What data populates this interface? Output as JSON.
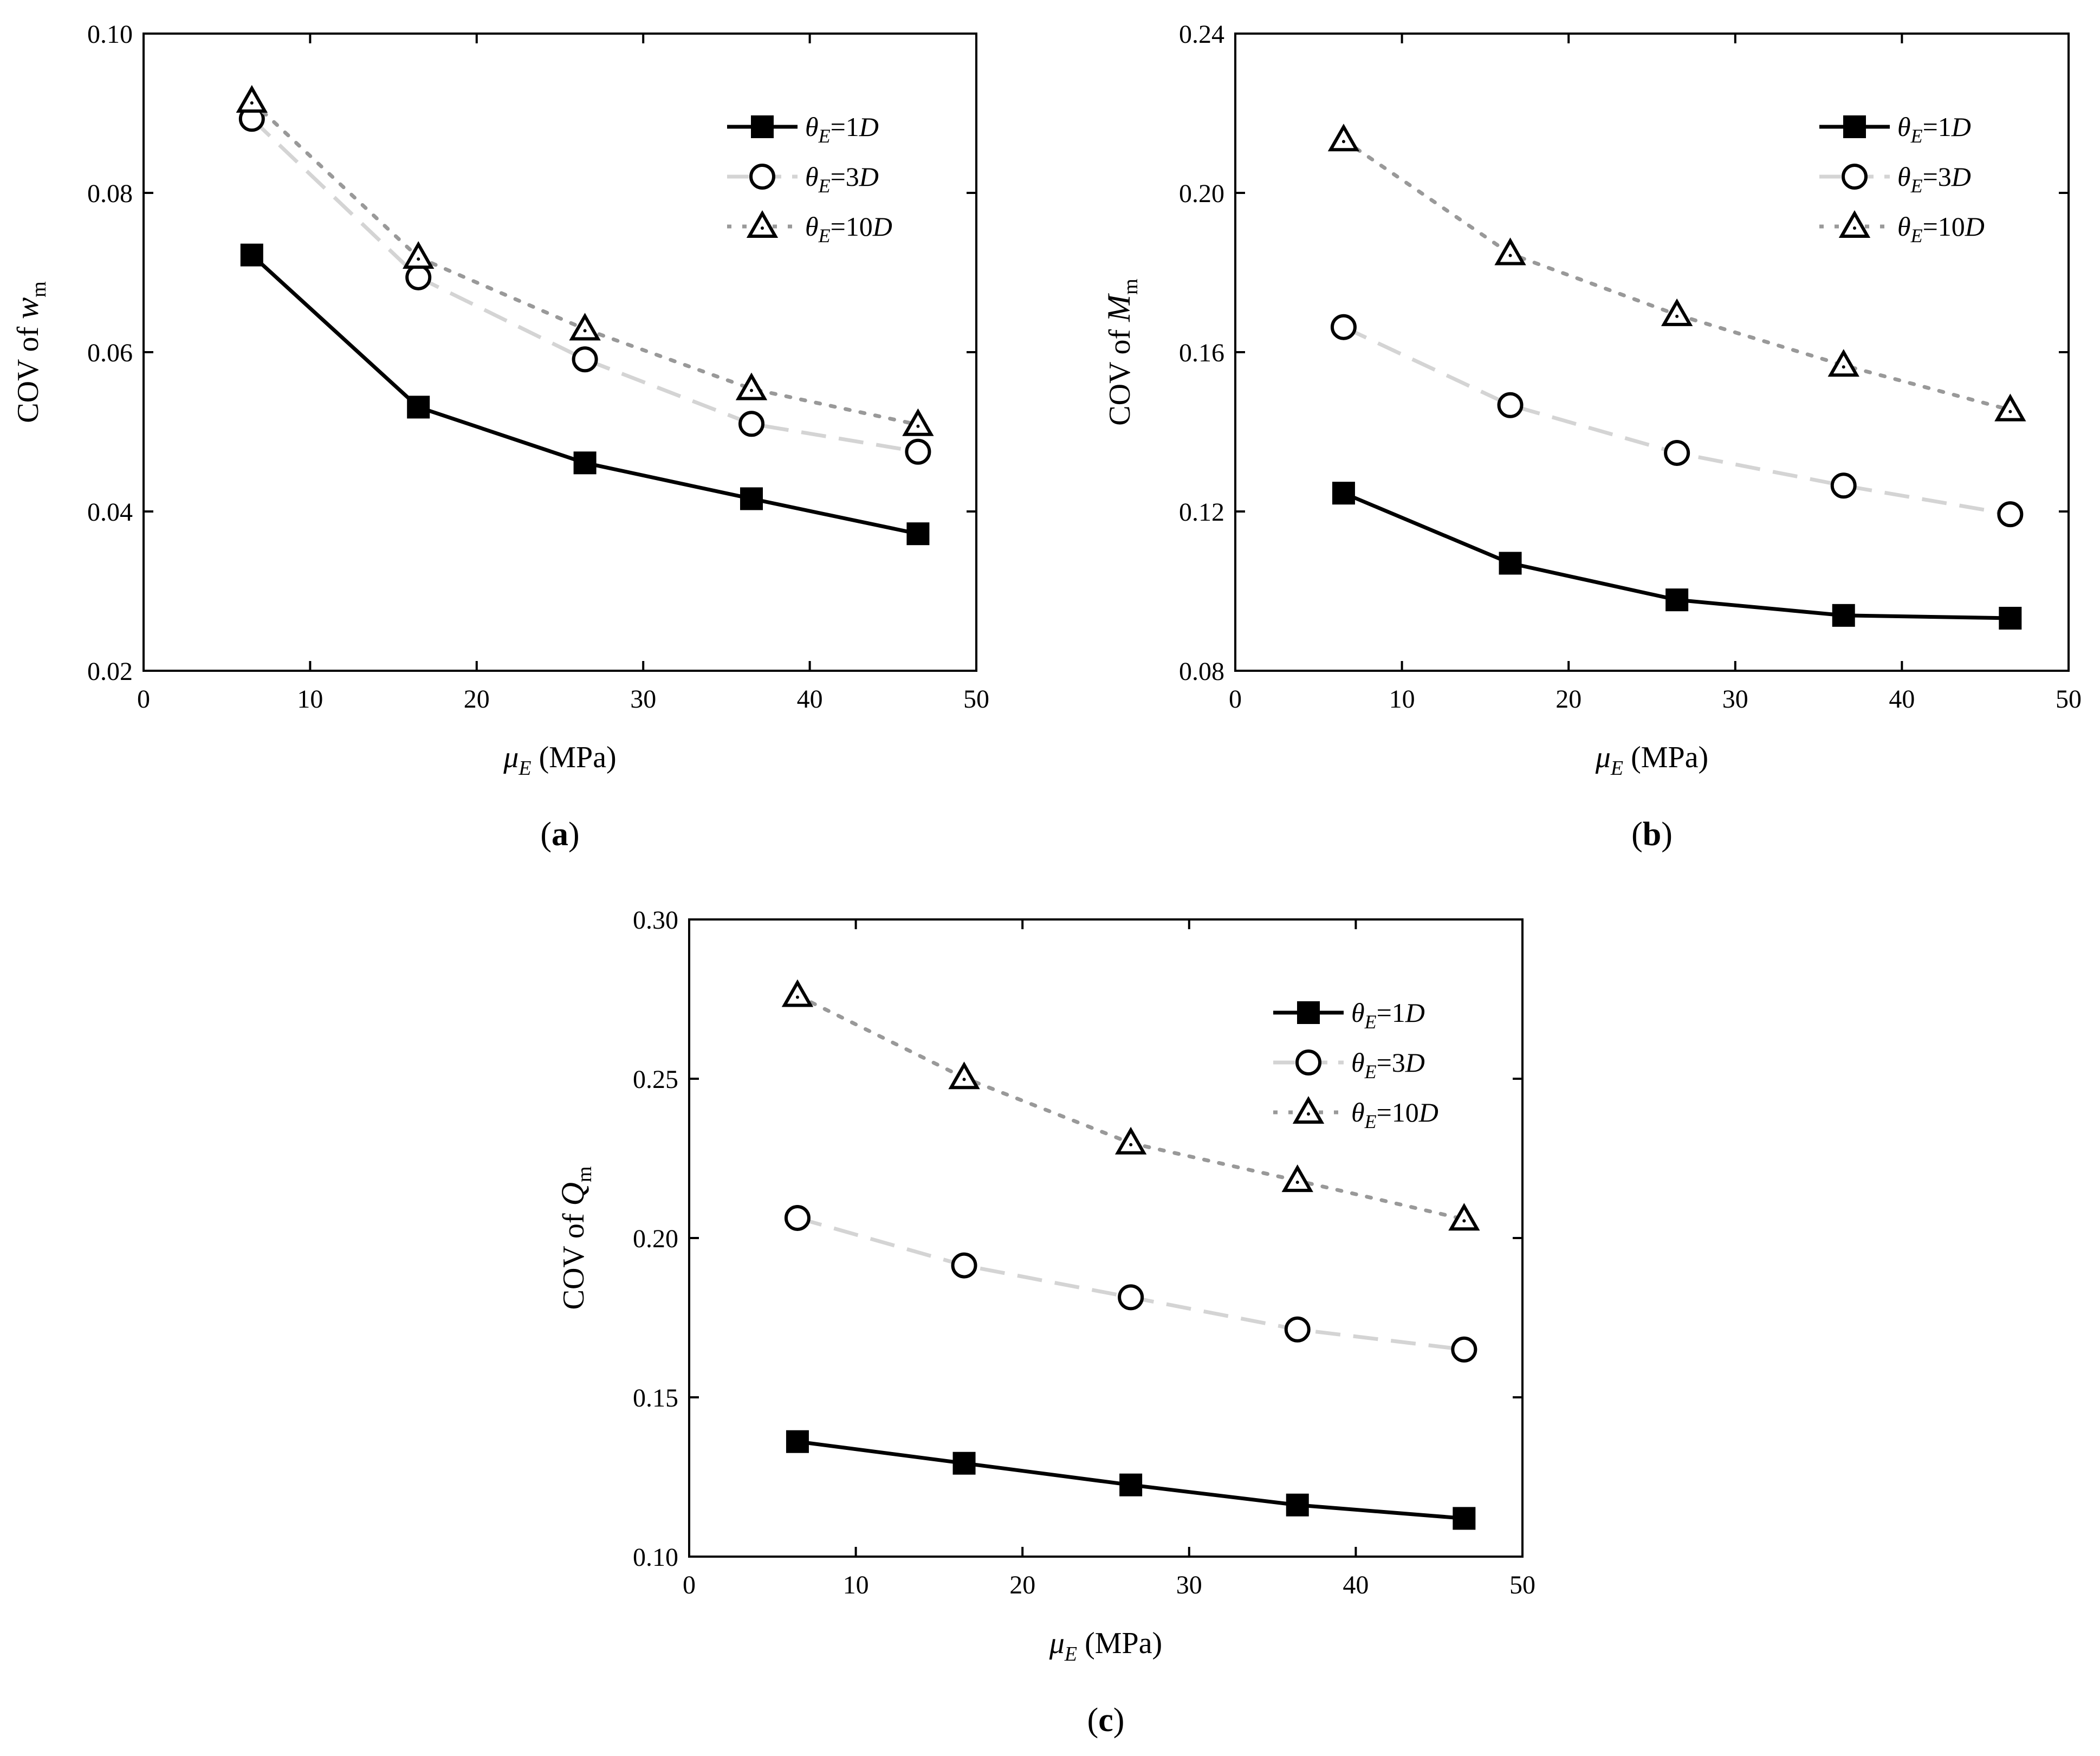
{
  "chart_data": [
    {
      "type": "line",
      "panel_label": "a",
      "xlabel": {
        "symbol": "μ",
        "sub": "E",
        "unit": "(MPa)"
      },
      "ylabel": {
        "prefix": "COV of ",
        "symbol": "w",
        "sub": "m"
      },
      "xlim": [
        0,
        50
      ],
      "ylim": [
        0.02,
        0.1
      ],
      "xticks": [
        0,
        10,
        20,
        30,
        40,
        50
      ],
      "yticks": [
        0.02,
        0.04,
        0.06,
        0.08,
        0.1
      ],
      "ytick_labels": [
        "0.02",
        "0.04",
        "0.06",
        "0.08",
        "0.10"
      ],
      "grid": false,
      "legend_position": "top-right",
      "x": [
        6.5,
        16.5,
        26.5,
        36.5,
        46.5
      ],
      "series": [
        {
          "name": "θE=1D",
          "symbol": "θ",
          "sub": "E",
          "eq": "=1",
          "tail": "D",
          "marker": "square",
          "line": "solid",
          "color": "#000000",
          "values": [
            0.0722,
            0.0531,
            0.0461,
            0.0416,
            0.0372
          ]
        },
        {
          "name": "θE=3D",
          "symbol": "θ",
          "sub": "E",
          "eq": "=3",
          "tail": "D",
          "marker": "circle",
          "line": "dashed",
          "color": "#d4d4d4",
          "values": [
            0.0893,
            0.0694,
            0.0591,
            0.051,
            0.0475
          ]
        },
        {
          "name": "θE=10D",
          "symbol": "θ",
          "sub": "E",
          "eq": "=10",
          "tail": "D",
          "marker": "triangle",
          "line": "dotted",
          "color": "#999999",
          "values": [
            0.0915,
            0.0719,
            0.0629,
            0.0554,
            0.0509
          ]
        }
      ]
    },
    {
      "type": "line",
      "panel_label": "b",
      "xlabel": {
        "symbol": "μ",
        "sub": "E",
        "unit": "(MPa)"
      },
      "ylabel": {
        "prefix": "COV of ",
        "symbol": "M",
        "sub": "m"
      },
      "xlim": [
        0,
        50
      ],
      "ylim": [
        0.08,
        0.24
      ],
      "xticks": [
        0,
        10,
        20,
        30,
        40,
        50
      ],
      "yticks": [
        0.08,
        0.12,
        0.16,
        0.2,
        0.24
      ],
      "ytick_labels": [
        "0.08",
        "0.12",
        "0.16",
        "0.20",
        "0.24"
      ],
      "grid": false,
      "legend_position": "top-right",
      "x": [
        6.5,
        16.5,
        26.5,
        36.5,
        46.5
      ],
      "series": [
        {
          "name": "θE=1D",
          "symbol": "θ",
          "sub": "E",
          "eq": "=1",
          "tail": "D",
          "marker": "square",
          "line": "solid",
          "color": "#000000",
          "values": [
            0.1246,
            0.107,
            0.0978,
            0.0939,
            0.0932
          ]
        },
        {
          "name": "θE=3D",
          "symbol": "θ",
          "sub": "E",
          "eq": "=3",
          "tail": "D",
          "marker": "circle",
          "line": "dashed",
          "color": "#d4d4d4",
          "values": [
            0.1663,
            0.1467,
            0.1347,
            0.1265,
            0.1193
          ]
        },
        {
          "name": "θE=10D",
          "symbol": "θ",
          "sub": "E",
          "eq": "=10",
          "tail": "D",
          "marker": "triangle",
          "line": "dotted",
          "color": "#999999",
          "values": [
            0.2133,
            0.1847,
            0.1694,
            0.1567,
            0.1455
          ]
        }
      ]
    },
    {
      "type": "line",
      "panel_label": "c",
      "xlabel": {
        "symbol": "μ",
        "sub": "E",
        "unit": "(MPa)"
      },
      "ylabel": {
        "prefix": "COV of ",
        "symbol": "Q",
        "sub": "m"
      },
      "xlim": [
        0,
        50
      ],
      "ylim": [
        0.1,
        0.3
      ],
      "xticks": [
        0,
        10,
        20,
        30,
        40,
        50
      ],
      "yticks": [
        0.1,
        0.15,
        0.2,
        0.25,
        0.3
      ],
      "ytick_labels": [
        "0.10",
        "0.15",
        "0.20",
        "0.25",
        "0.30"
      ],
      "grid": false,
      "legend_position": "top-right",
      "x": [
        6.5,
        16.5,
        26.5,
        36.5,
        46.5
      ],
      "series": [
        {
          "name": "θE=1D",
          "symbol": "θ",
          "sub": "E",
          "eq": "=1",
          "tail": "D",
          "marker": "square",
          "line": "solid",
          "color": "#000000",
          "values": [
            0.1361,
            0.1293,
            0.1225,
            0.1162,
            0.112
          ]
        },
        {
          "name": "θE=3D",
          "symbol": "θ",
          "sub": "E",
          "eq": "=3",
          "tail": "D",
          "marker": "circle",
          "line": "dashed",
          "color": "#d4d4d4",
          "values": [
            0.2063,
            0.1914,
            0.1814,
            0.1713,
            0.165
          ]
        },
        {
          "name": "θE=10D",
          "symbol": "θ",
          "sub": "E",
          "eq": "=10",
          "tail": "D",
          "marker": "triangle",
          "line": "dotted",
          "color": "#999999",
          "values": [
            0.2761,
            0.2503,
            0.2298,
            0.218,
            0.2059
          ]
        }
      ]
    }
  ]
}
